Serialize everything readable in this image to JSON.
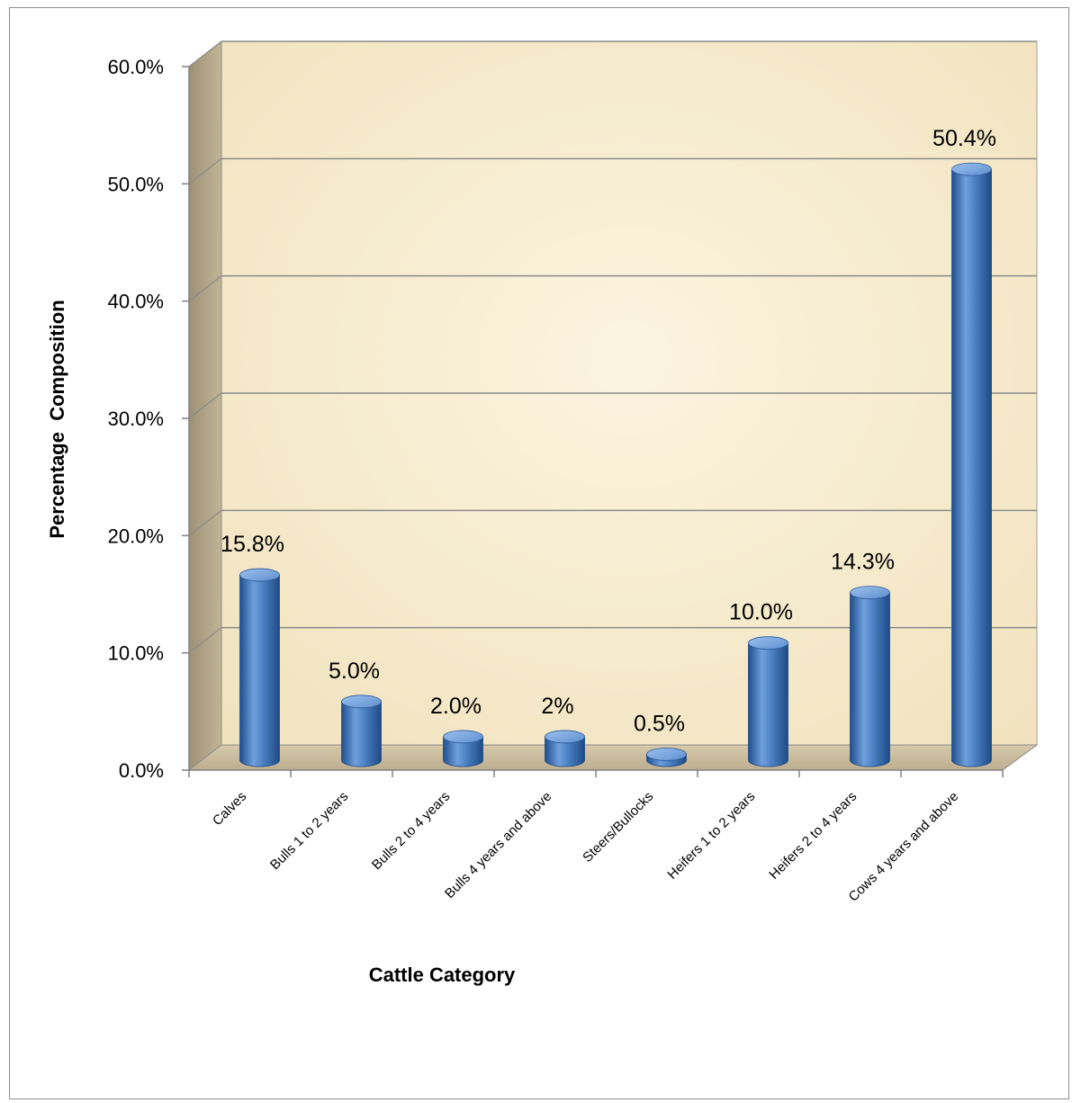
{
  "chart_data": {
    "type": "bar",
    "title": "",
    "xlabel": "Cattle Category",
    "ylabel": "Percentage  Composition",
    "categories": [
      "Calves",
      "Bulls 1 to 2 years",
      "Bulls 2 to 4 years",
      "Bulls 4 years and above",
      "Steers/Bullocks",
      "Heifers 1 to 2 years",
      "Heifers 2 to 4 years",
      "Cows 4 years and above"
    ],
    "values": [
      15.8,
      5.0,
      2.0,
      2.0,
      0.5,
      10.0,
      14.3,
      50.4
    ],
    "data_labels": [
      "15.8%",
      "5.0%",
      "2.0%",
      "2%",
      "0.5%",
      "10.0%",
      "14.3%",
      "50.4%"
    ],
    "y_ticks": [
      0,
      10,
      20,
      30,
      40,
      50,
      60
    ],
    "y_tick_labels": [
      "0.0%",
      "10.0%",
      "20.0%",
      "30.0%",
      "40.0%",
      "50.0%",
      "60.0%"
    ],
    "ylim": [
      0,
      60
    ],
    "grid": true,
    "legend": "none",
    "style": "3d-cylinder",
    "colors": {
      "bar": "#4a7fc1",
      "bar_dark": "#1f4f8c",
      "bar_light": "#8fb5e6",
      "wall": "#f6ecd0",
      "side_wall": "#b3a58a",
      "floor": "#c9ba9c",
      "gridline": "#8a8a8a"
    }
  }
}
